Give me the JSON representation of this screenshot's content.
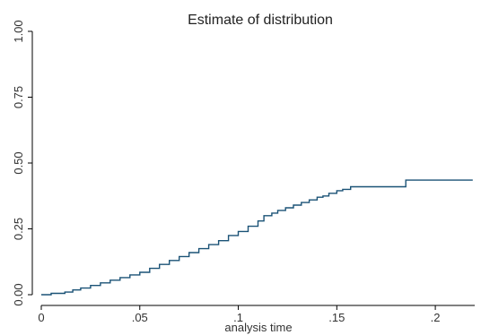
{
  "chart_data": {
    "type": "line",
    "step": true,
    "title": "Estimate of distribution",
    "xlabel": "analysis time",
    "ylabel": "",
    "xlim": [
      0,
      0.22
    ],
    "ylim": [
      0,
      1
    ],
    "x_ticks": [
      0,
      0.05,
      0.1,
      0.15,
      0.2
    ],
    "x_tick_labels": [
      "0",
      ".05",
      ".1",
      ".15",
      ".2"
    ],
    "y_ticks": [
      0,
      0.25,
      0.5,
      0.75,
      1.0
    ],
    "y_tick_labels": [
      "0.00",
      "0.25",
      "0.50",
      "0.75",
      "1.00"
    ],
    "grid": false,
    "legend": "none",
    "line_color": "#1a5276",
    "series": [
      {
        "x": [
          0,
          0.005,
          0.012,
          0.016,
          0.02,
          0.025,
          0.03,
          0.035,
          0.04,
          0.045,
          0.05,
          0.055,
          0.06,
          0.065,
          0.07,
          0.075,
          0.08,
          0.085,
          0.09,
          0.095,
          0.1,
          0.105,
          0.11,
          0.113,
          0.117,
          0.12,
          0.124,
          0.128,
          0.132,
          0.136,
          0.14,
          0.143,
          0.146,
          0.15,
          0.153,
          0.157,
          0.16,
          0.165,
          0.175,
          0.185,
          0.195,
          0.205,
          0.219
        ],
        "y": [
          0,
          0.005,
          0.01,
          0.018,
          0.025,
          0.035,
          0.045,
          0.055,
          0.065,
          0.075,
          0.085,
          0.1,
          0.115,
          0.13,
          0.145,
          0.16,
          0.175,
          0.19,
          0.205,
          0.225,
          0.24,
          0.26,
          0.28,
          0.3,
          0.31,
          0.32,
          0.33,
          0.34,
          0.35,
          0.36,
          0.37,
          0.375,
          0.385,
          0.395,
          0.4,
          0.41,
          0.41,
          0.41,
          0.41,
          0.435,
          0.435,
          0.435,
          0.435
        ]
      }
    ]
  }
}
